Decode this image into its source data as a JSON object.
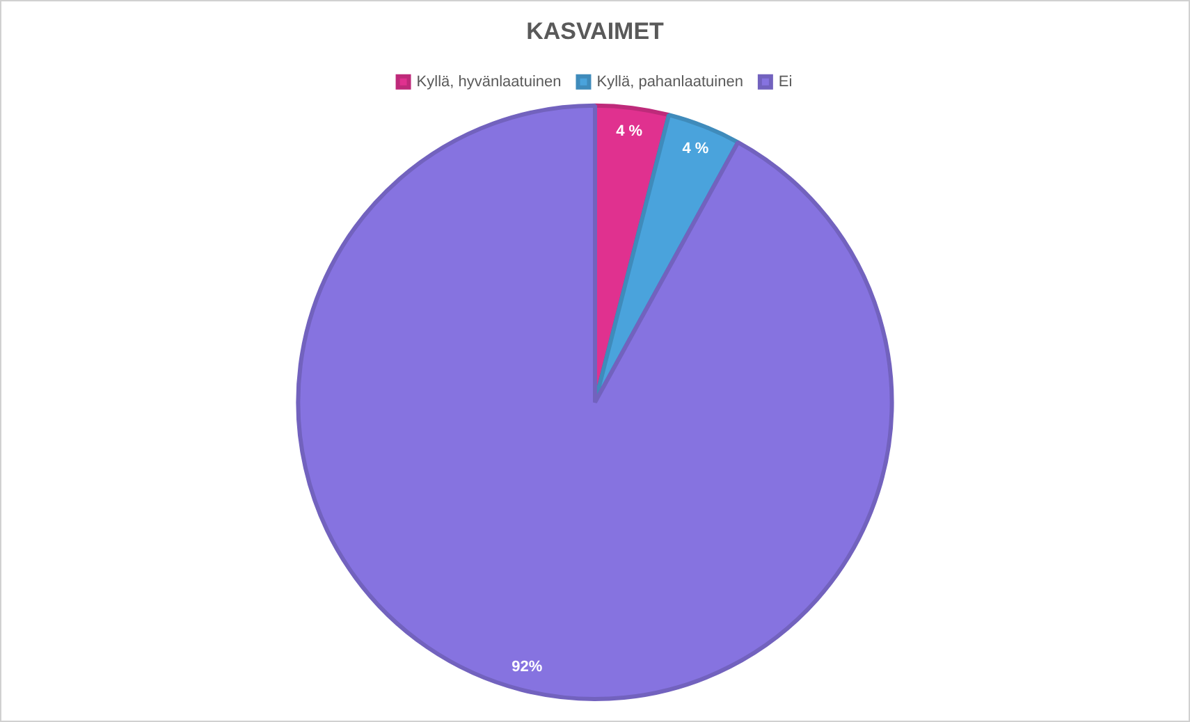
{
  "chart_data": {
    "type": "pie",
    "title": "KASVAIMET",
    "categories": [
      "Kyllä, hyvänlaatuinen",
      "Kyllä, pahanlaatuinen",
      "Ei"
    ],
    "values": [
      4,
      4,
      92
    ],
    "colors": [
      "#e0318f",
      "#4aa3dc",
      "#8673e0"
    ],
    "value_labels": [
      "4 %",
      "4 %",
      "92%"
    ],
    "legend": "top"
  }
}
